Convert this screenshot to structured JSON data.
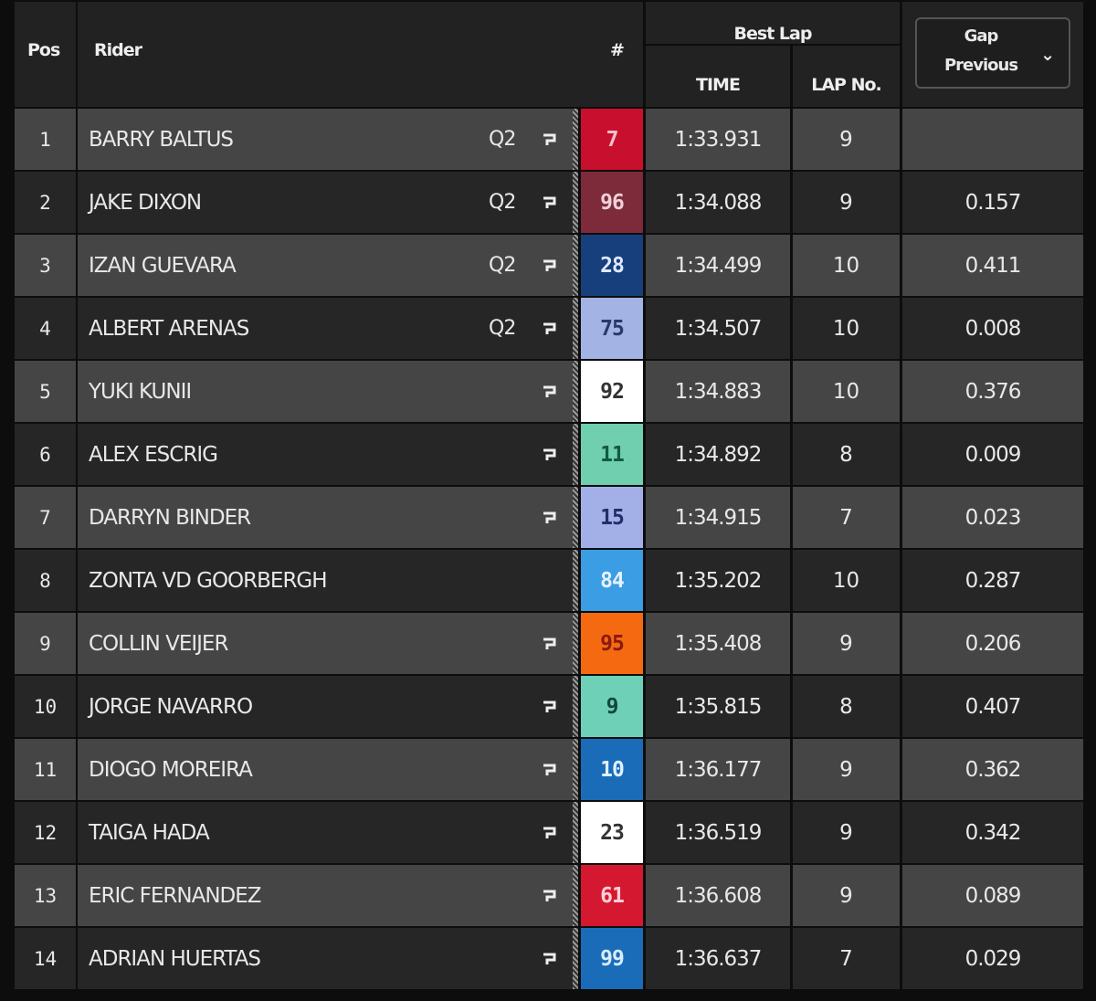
{
  "header": {
    "pos": "Pos",
    "rider": "Rider",
    "number": "#",
    "best_lap": "Best Lap",
    "time": "TIME",
    "lap_no": "LAP No.",
    "gap_line1": "Gap",
    "gap_line2": "Previous",
    "gap_dropdown_icon": "chevron-down-icon"
  },
  "rows": [
    {
      "pos": "1",
      "rider": "BARRY BALTUS",
      "q": "Q2",
      "pit": true,
      "num": "7",
      "bg": "#c8102e",
      "fg": "#f4c0c8",
      "time": "1:33.931",
      "lap": "9",
      "gap": ""
    },
    {
      "pos": "2",
      "rider": "JAKE DIXON",
      "q": "Q2",
      "pit": true,
      "num": "96",
      "bg": "#7d2a3a",
      "fg": "#f0d0d8",
      "time": "1:34.088",
      "lap": "9",
      "gap": "0.157"
    },
    {
      "pos": "3",
      "rider": "IZAN GUEVARA",
      "q": "Q2",
      "pit": true,
      "num": "28",
      "bg": "#163f7c",
      "fg": "#e0e8ff",
      "time": "1:34.499",
      "lap": "10",
      "gap": "0.411"
    },
    {
      "pos": "4",
      "rider": "ALBERT ARENAS",
      "q": "Q2",
      "pit": true,
      "num": "75",
      "bg": "#a3b3e3",
      "fg": "#283a6a",
      "time": "1:34.507",
      "lap": "10",
      "gap": "0.008"
    },
    {
      "pos": "5",
      "rider": "YUKI KUNII",
      "q": "",
      "pit": true,
      "num": "92",
      "bg": "#ffffff",
      "fg": "#333333",
      "time": "1:34.883",
      "lap": "10",
      "gap": "0.376"
    },
    {
      "pos": "6",
      "rider": "ALEX ESCRIG",
      "q": "",
      "pit": true,
      "num": "11",
      "bg": "#6fcfae",
      "fg": "#135a40",
      "time": "1:34.892",
      "lap": "8",
      "gap": "0.009"
    },
    {
      "pos": "7",
      "rider": "DARRYN BINDER",
      "q": "",
      "pit": true,
      "num": "15",
      "bg": "#a3b0e8",
      "fg": "#202f6a",
      "time": "1:34.915",
      "lap": "7",
      "gap": "0.023"
    },
    {
      "pos": "8",
      "rider": "ZONTA VD GOORBERGH",
      "q": "",
      "pit": false,
      "num": "84",
      "bg": "#3b9de3",
      "fg": "#e6f2ff",
      "time": "1:35.202",
      "lap": "10",
      "gap": "0.287"
    },
    {
      "pos": "9",
      "rider": "COLLIN VEIJER",
      "q": "",
      "pit": true,
      "num": "95",
      "bg": "#f56a10",
      "fg": "#8a1a10",
      "time": "1:35.408",
      "lap": "9",
      "gap": "0.206"
    },
    {
      "pos": "10",
      "rider": "JORGE NAVARRO",
      "q": "",
      "pit": true,
      "num": "9",
      "bg": "#6fd0b8",
      "fg": "#12483a",
      "time": "1:35.815",
      "lap": "8",
      "gap": "0.407"
    },
    {
      "pos": "11",
      "rider": "DIOGO MOREIRA",
      "q": "",
      "pit": true,
      "num": "10",
      "bg": "#1a6cb8",
      "fg": "#e0f0ff",
      "time": "1:36.177",
      "lap": "9",
      "gap": "0.362"
    },
    {
      "pos": "12",
      "rider": "TAIGA HADA",
      "q": "",
      "pit": true,
      "num": "23",
      "bg": "#ffffff",
      "fg": "#333333",
      "time": "1:36.519",
      "lap": "9",
      "gap": "0.342"
    },
    {
      "pos": "13",
      "rider": "ERIC FERNANDEZ",
      "q": "",
      "pit": true,
      "num": "61",
      "bg": "#d41830",
      "fg": "#ffd0d8",
      "time": "1:36.608",
      "lap": "9",
      "gap": "0.089"
    },
    {
      "pos": "14",
      "rider": "ADRIAN HUERTAS",
      "q": "",
      "pit": true,
      "num": "99",
      "bg": "#1a6cb8",
      "fg": "#d8ecff",
      "time": "1:36.637",
      "lap": "7",
      "gap": "0.029"
    }
  ]
}
